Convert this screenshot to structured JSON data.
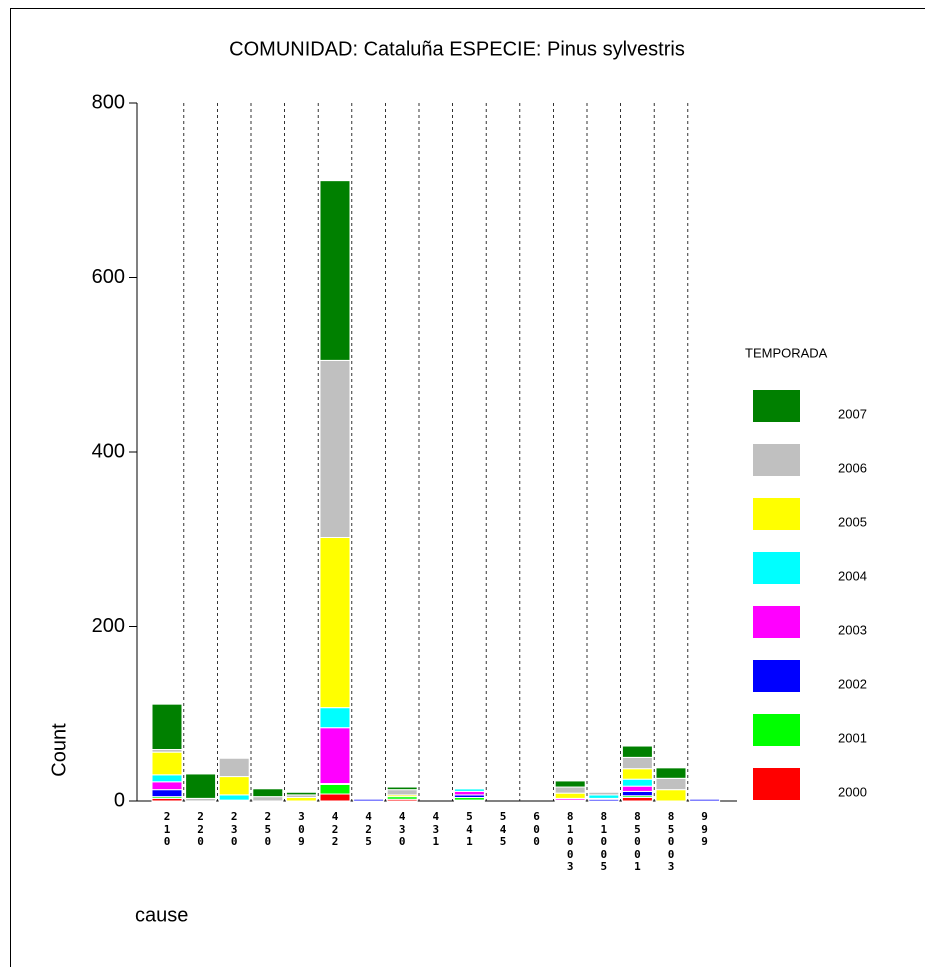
{
  "chart_data": {
    "type": "stacked_bar",
    "title": "COMUNIDAD: Cataluña  ESPECIE: Pinus sylvestris",
    "x_label": "cause",
    "y_label": "Count",
    "legend_title": "TEMPORADA",
    "legend_position": "right",
    "categories": [
      "210",
      "220",
      "230",
      "250",
      "309",
      "422",
      "425",
      "430",
      "431",
      "541",
      "545",
      "600",
      "81003",
      "81005",
      "85001",
      "85003",
      "999"
    ],
    "ylim": [
      0,
      800
    ],
    "yticks": [
      0,
      200,
      400,
      600,
      800
    ],
    "grid": "vertical-dashed",
    "series": [
      {
        "name": "2000",
        "color": "#ff0000",
        "values": [
          3,
          0,
          1,
          0,
          0,
          8,
          0,
          2,
          0,
          1,
          0,
          0,
          1,
          0,
          4,
          0,
          0
        ]
      },
      {
        "name": "2001",
        "color": "#00ff00",
        "values": [
          2,
          0,
          0,
          0,
          0,
          11,
          0,
          3,
          0,
          3,
          0,
          0,
          0,
          0,
          2,
          0,
          0
        ]
      },
      {
        "name": "2002",
        "color": "#0000ff",
        "values": [
          8,
          0,
          0,
          0,
          0,
          1,
          2,
          0,
          0,
          3,
          0,
          0,
          0,
          2,
          5,
          0,
          2
        ]
      },
      {
        "name": "2003",
        "color": "#ff00ff",
        "values": [
          9,
          0,
          0,
          0,
          0,
          64,
          0,
          0,
          0,
          4,
          0,
          0,
          2,
          1,
          6,
          0,
          0
        ]
      },
      {
        "name": "2004",
        "color": "#00ffff",
        "values": [
          8,
          0,
          6,
          0,
          0,
          23,
          0,
          0,
          0,
          3,
          0,
          0,
          0,
          4,
          8,
          0,
          0
        ]
      },
      {
        "name": "2005",
        "color": "#ffff00",
        "values": [
          26,
          0,
          21,
          0,
          4,
          195,
          0,
          2,
          0,
          1,
          0,
          0,
          6,
          0,
          12,
          13,
          0
        ]
      },
      {
        "name": "2006",
        "color": "#c0c0c0",
        "values": [
          3,
          3,
          21,
          5,
          3,
          203,
          0,
          6,
          0,
          1,
          0,
          0,
          7,
          3,
          13,
          13,
          0
        ]
      },
      {
        "name": "2007",
        "color": "#008000",
        "values": [
          52,
          28,
          0,
          9,
          3,
          206,
          0,
          3,
          0,
          1,
          0,
          0,
          7,
          0,
          13,
          12,
          0
        ]
      }
    ]
  }
}
